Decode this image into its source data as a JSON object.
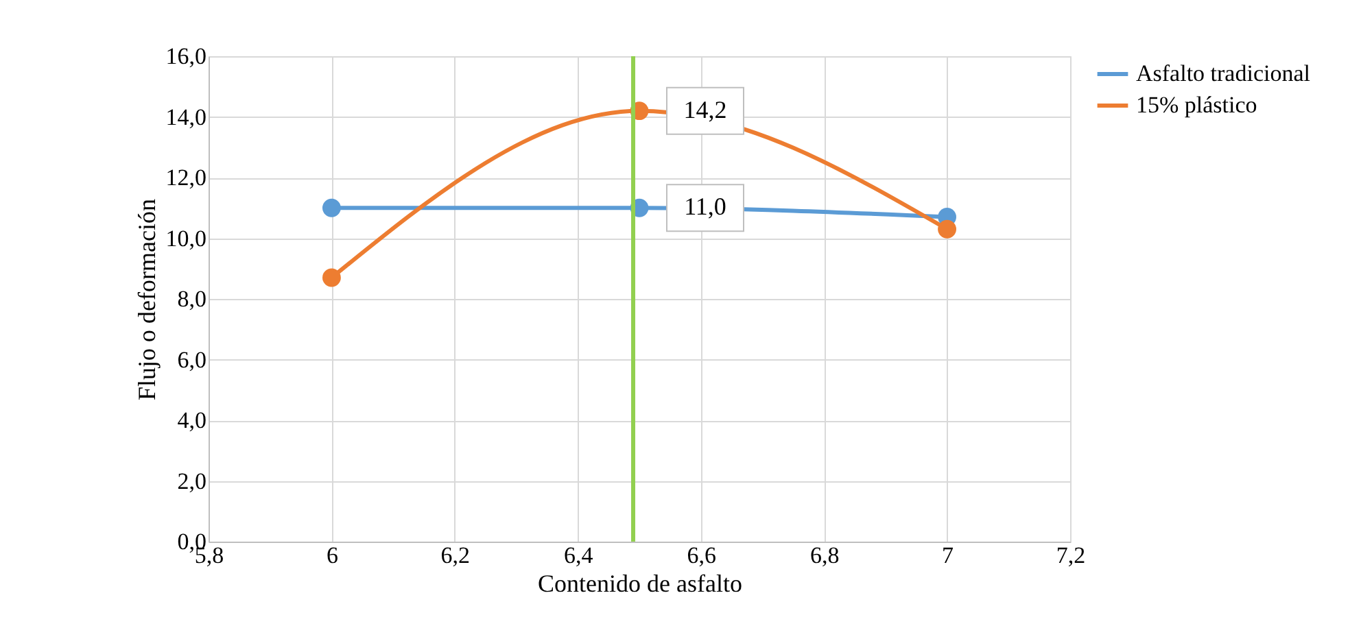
{
  "chart_data": {
    "type": "line",
    "xlabel": "Contenido de asfalto",
    "ylabel": "Flujo o deformación",
    "x": [
      6,
      6.5,
      7
    ],
    "series": [
      {
        "name": "Asfalto tradicional",
        "color": "#5b9bd5",
        "values": [
          11.0,
          11.0,
          10.7
        ],
        "value_labels": [
          null,
          "11,0",
          null
        ]
      },
      {
        "name": "15% plástico",
        "color": "#ed7d31",
        "values": [
          8.7,
          14.2,
          10.3
        ],
        "value_labels": [
          null,
          "14,2",
          null
        ]
      }
    ],
    "xlim": [
      5.8,
      7.2
    ],
    "xticks": [
      {
        "value": 5.8,
        "label": "5,8"
      },
      6,
      {
        "value": 6.2,
        "label": "6,2"
      },
      {
        "value": 6.4,
        "label": "6,4"
      },
      {
        "value": 6.6,
        "label": "6,6"
      },
      {
        "value": 6.8,
        "label": "6,8"
      },
      7,
      {
        "value": 7.2,
        "label": "7,2"
      }
    ],
    "ylim": [
      0,
      16
    ],
    "yticks": [
      {
        "value": 0,
        "label": "0,0"
      },
      {
        "value": 2,
        "label": "2,0"
      },
      {
        "value": 4,
        "label": "4,0"
      },
      {
        "value": 6,
        "label": "6,0"
      },
      {
        "value": 8,
        "label": "8,0"
      },
      {
        "value": 10,
        "label": "10,0"
      },
      {
        "value": 12,
        "label": "12,0"
      },
      {
        "value": 14,
        "label": "14,0"
      },
      {
        "value": 16,
        "label": "16,0"
      }
    ],
    "ref_lines": [
      {
        "axis": "x",
        "value": 6.49,
        "color": "#92d050"
      }
    ],
    "grid": true,
    "legend": "right",
    "marker": "circle",
    "line_style": "solid"
  }
}
